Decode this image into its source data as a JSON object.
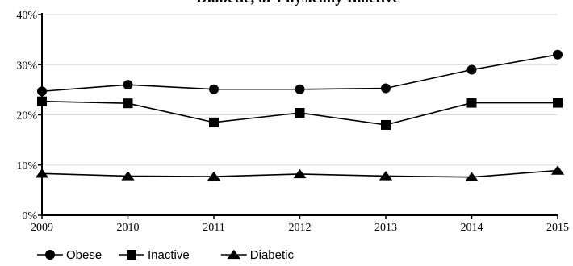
{
  "chart_data": {
    "type": "line",
    "title": "Diabetic, or Physically Inactive",
    "xlabel": "",
    "ylabel": "",
    "x": [
      2009,
      2010,
      2011,
      2012,
      2013,
      2014,
      2015
    ],
    "x_tick_labels": [
      "2009",
      "2010",
      "2011",
      "2012",
      "2013",
      "2014",
      "2015"
    ],
    "ylim": [
      0,
      40
    ],
    "y_ticks": [
      0,
      10,
      20,
      30,
      40
    ],
    "y_tick_labels": [
      "0%",
      "10%",
      "20%",
      "30%",
      "40%"
    ],
    "grid": true,
    "legend_position": "bottom-left",
    "series": [
      {
        "name": "Obese",
        "marker": "circle",
        "values": [
          24.7,
          26.0,
          25.1,
          25.1,
          25.3,
          29.0,
          32.0
        ]
      },
      {
        "name": "Inactive",
        "marker": "square",
        "values": [
          22.7,
          22.3,
          18.5,
          20.4,
          18.0,
          22.4,
          22.4
        ]
      },
      {
        "name": "Diabetic",
        "marker": "triangle",
        "values": [
          8.3,
          7.8,
          7.7,
          8.2,
          7.8,
          7.6,
          8.9
        ]
      }
    ]
  }
}
